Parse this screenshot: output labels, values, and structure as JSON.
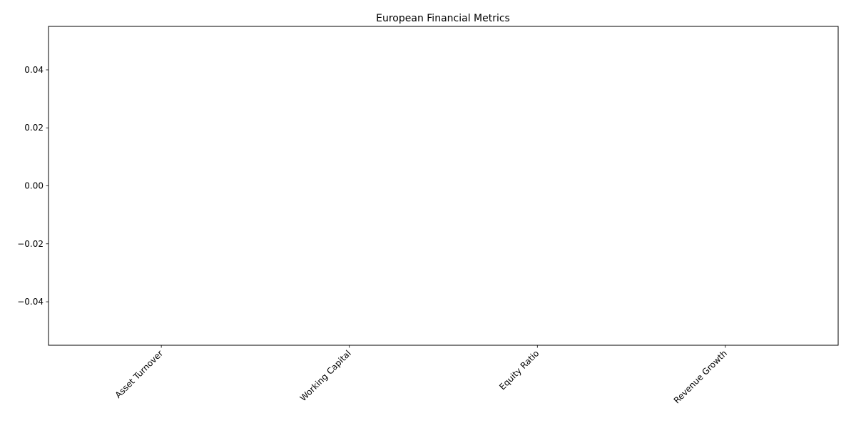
{
  "chart_data": {
    "type": "bar",
    "title": "European Financial Metrics",
    "categories": [
      "Asset Turnover",
      "Working Capital",
      "Equity Ratio",
      "Revenue Growth"
    ],
    "ylim": [
      -0.055,
      0.055
    ],
    "yticks": [
      {
        "value": -0.04,
        "label": "−0.04"
      },
      {
        "value": -0.02,
        "label": "−0.02"
      },
      {
        "value": 0,
        "label": "0.00"
      },
      0.02,
      0.04
    ],
    "grid": false
  }
}
